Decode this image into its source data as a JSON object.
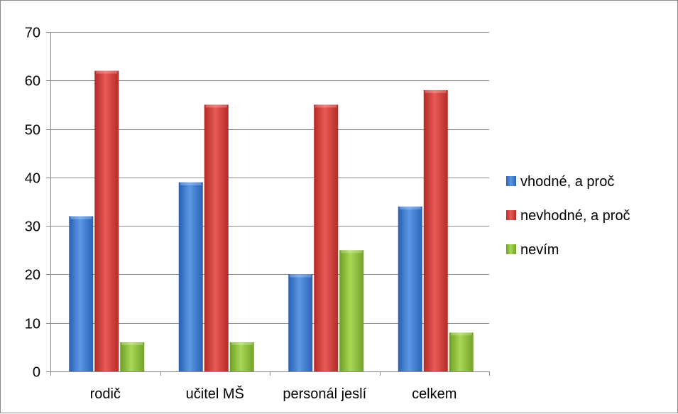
{
  "chart_data": {
    "type": "bar",
    "categories": [
      "rodič",
      "učitel MŠ",
      "personál jeslí",
      "celkem"
    ],
    "series": [
      {
        "name": "vhodné, a proč",
        "values": [
          32,
          39,
          20,
          34
        ],
        "color": "#3a7bd5"
      },
      {
        "name": "nevhodné, a proč",
        "values": [
          62,
          55,
          55,
          58
        ],
        "color": "#d13c38"
      },
      {
        "name": "nevím",
        "values": [
          6,
          6,
          25,
          8
        ],
        "color": "#8fc63d"
      }
    ],
    "ylim": [
      0,
      70
    ],
    "yticks": [
      "0",
      "10",
      "20",
      "30",
      "40",
      "50",
      "60",
      "70"
    ],
    "grid": true,
    "legend": "right"
  }
}
